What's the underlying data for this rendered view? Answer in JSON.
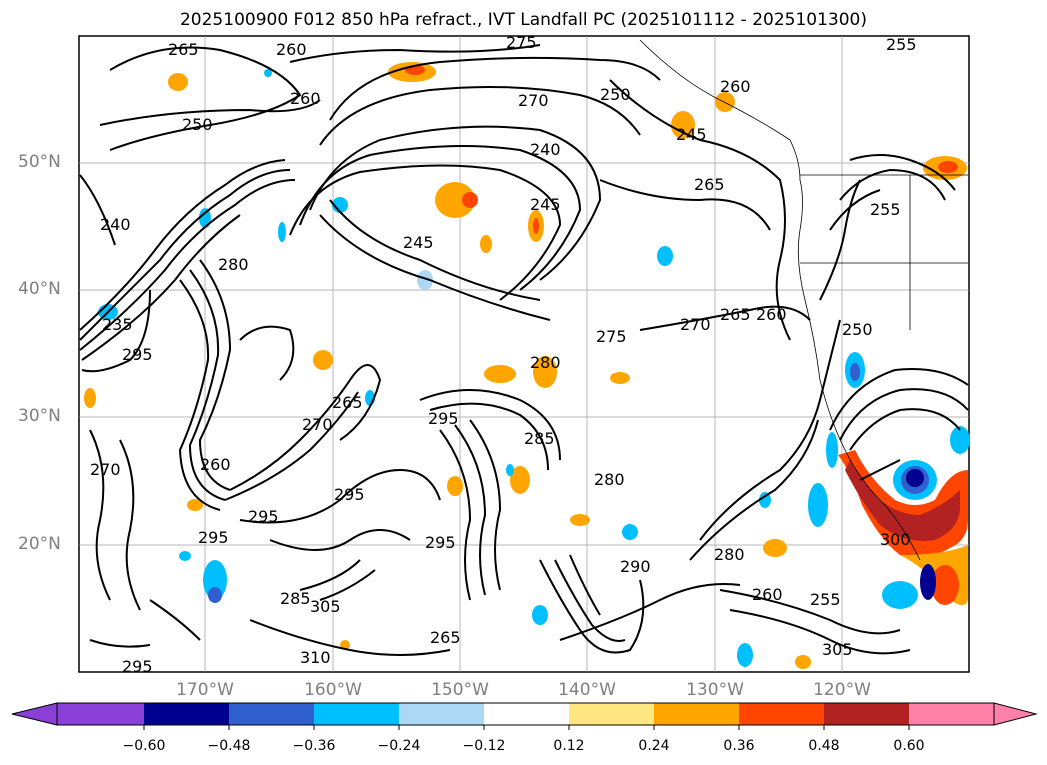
{
  "title": "2025100900 F012 850 hPa refract., IVT Landfall PC (2025101112 - 2025101300)",
  "lat_labels": [
    "50°N",
    "40°N",
    "30°N",
    "20°N"
  ],
  "lon_labels": [
    "170°W",
    "160°W",
    "150°W",
    "140°W",
    "130°W",
    "120°W"
  ],
  "contour_labels": [
    "265",
    "260",
    "275",
    "270",
    "250",
    "240",
    "245",
    "235",
    "280",
    "285",
    "290",
    "295",
    "305",
    "310",
    "255",
    "300"
  ],
  "colorbar": {
    "ticks": [
      "−0.60",
      "−0.48",
      "−0.36",
      "−0.24",
      "−0.12",
      "0.12",
      "0.24",
      "0.36",
      "0.48",
      "0.60"
    ],
    "colors": [
      "#8a3fd6",
      "#2b9be3",
      "#000090",
      "#3060d0",
      "#00bfff",
      "#add8f5",
      "#ffffff",
      "#ffe680",
      "#ffa500",
      "#ff4500",
      "#b22222",
      "#ff80a8"
    ]
  }
}
